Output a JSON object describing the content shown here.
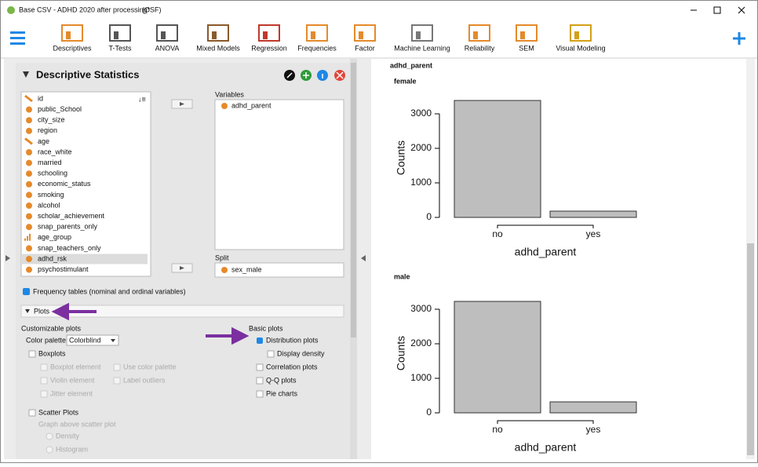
{
  "window": {
    "title": "Base CSV - ADHD 2020 after processing*",
    "source": "(OSF)"
  },
  "ribbon": [
    "Descriptives",
    "T-Tests",
    "ANOVA",
    "Mixed Models",
    "Regression",
    "Frequencies",
    "Factor",
    "Machine Learning",
    "Reliability",
    "SEM",
    "Visual Modeling"
  ],
  "analysis": {
    "title": "Descriptive Statistics",
    "variables": [
      "id",
      "public_School",
      "city_size",
      "region",
      "age",
      "race_white",
      "married",
      "schooling",
      "economic_status",
      "smoking",
      "alcohol",
      "scholar_achievement",
      "snap_parents_only",
      "age_group",
      "snap_teachers_only",
      "adhd_rsk",
      "psychostimulant"
    ],
    "variable_types": [
      "scale",
      "nominal",
      "nominal",
      "nominal",
      "scale",
      "nominal",
      "nominal",
      "nominal",
      "nominal",
      "nominal",
      "nominal",
      "nominal",
      "nominal",
      "ordinal",
      "nominal",
      "nominal",
      "nominal"
    ],
    "variables_label": "Variables",
    "selected": [
      "adhd_parent"
    ],
    "split_label": "Split",
    "split": [
      "sex_male"
    ],
    "frequency_tables": "Frequency tables (nominal and ordinal variables)",
    "plots_section": "Plots",
    "customizable_plots": "Customizable plots",
    "color_palette": "Color palette",
    "color_palette_value": "Colorblind",
    "boxplots": "Boxplots",
    "boxplot_options": [
      "Boxplot element",
      "Use color palette",
      "Violin element",
      "Label outliers",
      "Jitter element"
    ],
    "scatter_plots": "Scatter Plots",
    "scatter_above": "Graph above scatter plot",
    "scatter_options": [
      "Density",
      "Histogram"
    ],
    "basic_plots": "Basic plots",
    "basic_options": [
      "Distribution plots",
      "Display density",
      "Correlation plots",
      "Q-Q plots",
      "Pie charts"
    ]
  },
  "output": {
    "heading": "adhd_parent"
  },
  "chart_data": [
    {
      "type": "bar",
      "title": "female",
      "categories": [
        "no",
        "yes"
      ],
      "values": [
        3386,
        182
      ],
      "xlabel": "adhd_parent",
      "ylabel": "Counts",
      "ylim": [
        0,
        3000
      ],
      "yticks": [
        0,
        1000,
        2000,
        3000
      ],
      "color": "#bebebe"
    },
    {
      "type": "bar",
      "title": "male",
      "categories": [
        "no",
        "yes"
      ],
      "values": [
        3227,
        318
      ],
      "xlabel": "adhd_parent",
      "ylabel": "Counts",
      "ylim": [
        0,
        3000
      ],
      "yticks": [
        0,
        1000,
        2000,
        3000
      ],
      "color": "#bebebe"
    }
  ]
}
